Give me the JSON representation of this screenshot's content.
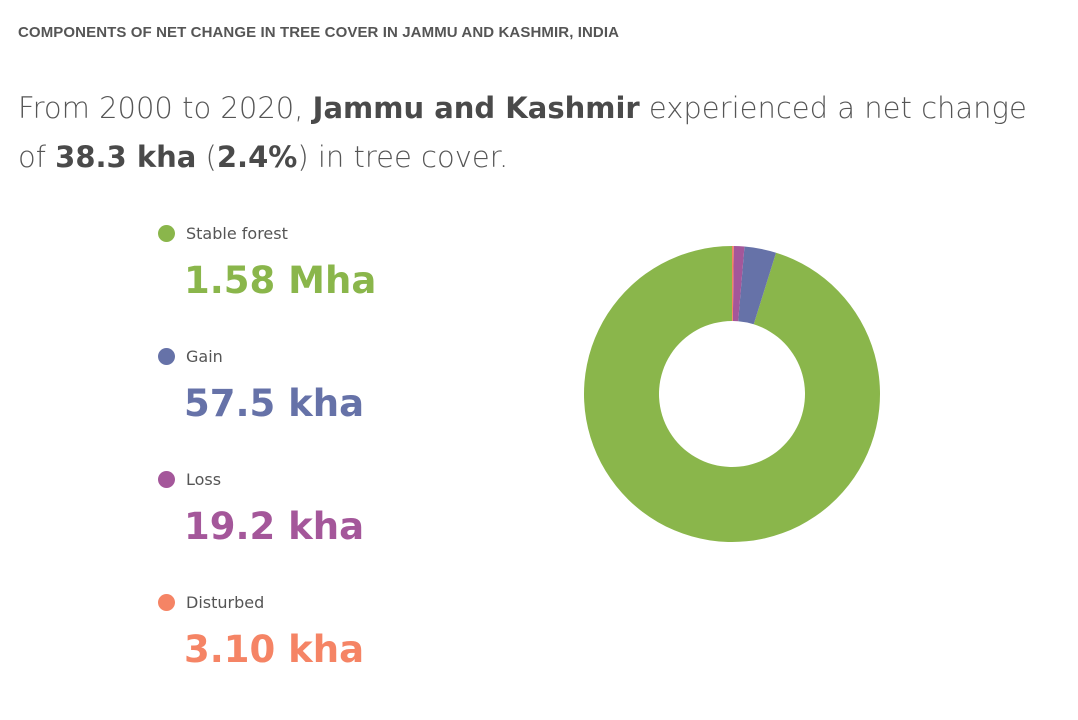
{
  "widget": {
    "title": "COMPONENTS OF NET CHANGE IN TREE COVER IN JAMMU AND KASHMIR, INDIA"
  },
  "sentence": {
    "part1": "From 2000 to 2020, ",
    "region": "Jammu and Kashmir",
    "part2": " experienced a net change of ",
    "net_change": "38.3 kha",
    "part3": " (",
    "percent": "2.4%",
    "part4": ") in tree cover."
  },
  "legend": [
    {
      "label": "Stable forest",
      "value": "1.58 Mha",
      "color": "#8ab64b"
    },
    {
      "label": "Gain",
      "value": "57.5 kha",
      "color": "#6672a8"
    },
    {
      "label": "Loss",
      "value": "19.2 kha",
      "color": "#a4579a"
    },
    {
      "label": "Disturbed",
      "value": "3.10 kha",
      "color": "#f58465"
    }
  ],
  "chart_data": {
    "type": "pie",
    "donut": true,
    "start": "top",
    "direction": "counter-clockwise",
    "unit": "kha",
    "categories": [
      "Stable forest",
      "Gain",
      "Loss",
      "Disturbed"
    ],
    "values": [
      1580,
      57.5,
      19.2,
      3.1
    ],
    "colors": [
      "#8ab64b",
      "#6672a8",
      "#a4579a",
      "#f58465"
    ]
  }
}
